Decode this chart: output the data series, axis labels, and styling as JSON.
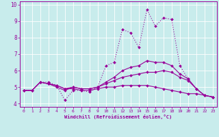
{
  "title": "",
  "xlabel": "Windchill (Refroidissement éolien,°C)",
  "ylabel": "",
  "background_color": "#c8ecec",
  "grid_color": "#aadddd",
  "line_color": "#990099",
  "spine_color": "#990099",
  "xlim": [
    -0.5,
    23.5
  ],
  "ylim": [
    3.8,
    10.2
  ],
  "yticks": [
    4,
    5,
    6,
    7,
    8,
    9,
    10
  ],
  "xticks": [
    0,
    1,
    2,
    3,
    4,
    5,
    6,
    7,
    8,
    9,
    10,
    11,
    12,
    13,
    14,
    15,
    16,
    17,
    18,
    19,
    20,
    21,
    22,
    23
  ],
  "series": [
    {
      "x": [
        0,
        1,
        2,
        3,
        4,
        5,
        6,
        7,
        8,
        9,
        10,
        11,
        12,
        13,
        14,
        15,
        16,
        17,
        18,
        19,
        20,
        21,
        22,
        23
      ],
      "y": [
        4.8,
        4.8,
        5.3,
        5.3,
        5.1,
        4.2,
        4.8,
        4.8,
        4.7,
        5.0,
        6.3,
        6.5,
        8.5,
        8.3,
        7.4,
        9.7,
        8.7,
        9.2,
        9.1,
        6.3,
        5.5,
        4.9,
        4.5,
        4.4
      ],
      "marker": "D",
      "markersize": 2.0,
      "linewidth": 0.8,
      "linestyle": "dotted"
    },
    {
      "x": [
        0,
        1,
        2,
        3,
        4,
        5,
        6,
        7,
        8,
        9,
        10,
        11,
        12,
        13,
        14,
        15,
        16,
        17,
        18,
        19,
        20,
        21,
        22,
        23
      ],
      "y": [
        4.8,
        4.8,
        5.3,
        5.2,
        5.0,
        4.8,
        5.0,
        4.9,
        4.9,
        5.0,
        5.3,
        5.6,
        6.0,
        6.2,
        6.3,
        6.6,
        6.5,
        6.5,
        6.3,
        5.8,
        5.5,
        4.9,
        4.5,
        4.4
      ],
      "marker": "D",
      "markersize": 2.0,
      "linewidth": 0.8,
      "linestyle": "solid"
    },
    {
      "x": [
        0,
        1,
        2,
        3,
        4,
        5,
        6,
        7,
        8,
        9,
        10,
        11,
        12,
        13,
        14,
        15,
        16,
        17,
        18,
        19,
        20,
        21,
        22,
        23
      ],
      "y": [
        4.8,
        4.8,
        5.3,
        5.2,
        5.1,
        4.9,
        5.0,
        4.9,
        4.9,
        5.0,
        5.2,
        5.4,
        5.6,
        5.7,
        5.8,
        5.9,
        5.9,
        6.0,
        5.9,
        5.6,
        5.4,
        4.9,
        4.5,
        4.4
      ],
      "marker": "D",
      "markersize": 2.0,
      "linewidth": 0.8,
      "linestyle": "solid"
    },
    {
      "x": [
        0,
        1,
        2,
        3,
        4,
        5,
        6,
        7,
        8,
        9,
        10,
        11,
        12,
        13,
        14,
        15,
        16,
        17,
        18,
        19,
        20,
        21,
        22,
        23
      ],
      "y": [
        4.8,
        4.8,
        5.3,
        5.2,
        5.1,
        4.9,
        4.9,
        4.8,
        4.8,
        4.9,
        5.0,
        5.0,
        5.1,
        5.1,
        5.1,
        5.1,
        5.0,
        4.9,
        4.8,
        4.7,
        4.6,
        4.6,
        4.5,
        4.4
      ],
      "marker": "D",
      "markersize": 2.0,
      "linewidth": 0.8,
      "linestyle": "solid"
    }
  ]
}
